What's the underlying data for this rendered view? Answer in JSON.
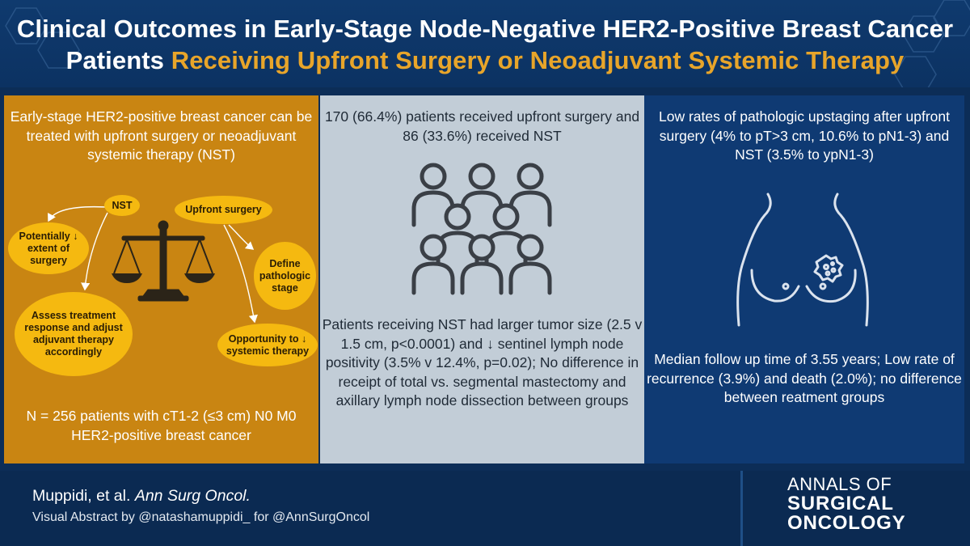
{
  "header": {
    "title_line1": "Clinical Outcomes in Early-Stage Node-Negative HER2-Positive Breast Cancer",
    "title_line2_prefix": "Patients",
    "title_line2_highlight": "Receiving Upfront Surgery or Neoadjuvant Systemic Therapy"
  },
  "left_panel": {
    "intro": "Early-stage HER2-positive breast cancer can be treated with upfront surgery or neoadjuvant systemic therapy (NST)",
    "diagram": {
      "nst": "NST",
      "upfront_surgery": "Upfront surgery",
      "potentially": "Potentially ↓ extent of surgery",
      "define_stage": "Define pathologic stage",
      "assess_response": "Assess treatment response and adjust adjuvant therapy accordingly",
      "opportunity": "Opportunity to ↓ systemic therapy"
    },
    "footer_text": "N = 256 patients with cT1-2 (≤3 cm) N0 M0 HER2-positive breast cancer"
  },
  "middle_panel": {
    "intro": "170 (66.4%) patients received upfront surgery and 86 (33.6%) received NST",
    "body": "Patients receiving NST had larger tumor size (2.5 v 1.5 cm, p<0.0001) and ↓ sentinel lymph node positivity (3.5% v 12.4%, p=0.02); No difference in receipt of total vs. segmental mastectomy and axillary lymph node dissection between groups"
  },
  "right_panel": {
    "intro": "Low rates of pathologic upstaging after upfront surgery (4% to pT>3 cm, 10.6% to pN1-3) and NST (3.5% to ypN1-3)",
    "body": "Median follow up time of 3.55 years; Low rate of recurrence (3.9%) and death (2.0%); no difference between reatment groups"
  },
  "footer": {
    "authors": "Muppidi, et al.",
    "journal_abbrev": "Ann Surg Oncol.",
    "credit": "Visual Abstract by @natashamuppidi_ for @AnnSurgOncol",
    "journal_line1": "ANNALS OF",
    "journal_line2": "SURGICAL",
    "journal_line3": "ONCOLOGY"
  },
  "icons": {
    "scales": "balance-scale-icon",
    "people": "group-of-people-icon",
    "torso": "breast-tumor-icon"
  },
  "colors": {
    "header_bg": "#0f3a6e",
    "accent_orange": "#e8a52a",
    "left_panel": "#c98512",
    "middle_panel": "#c2cdd7",
    "right_panel": "#0f3a73",
    "oval_yellow": "#f5b910",
    "footer_bg": "#0b2a52"
  }
}
